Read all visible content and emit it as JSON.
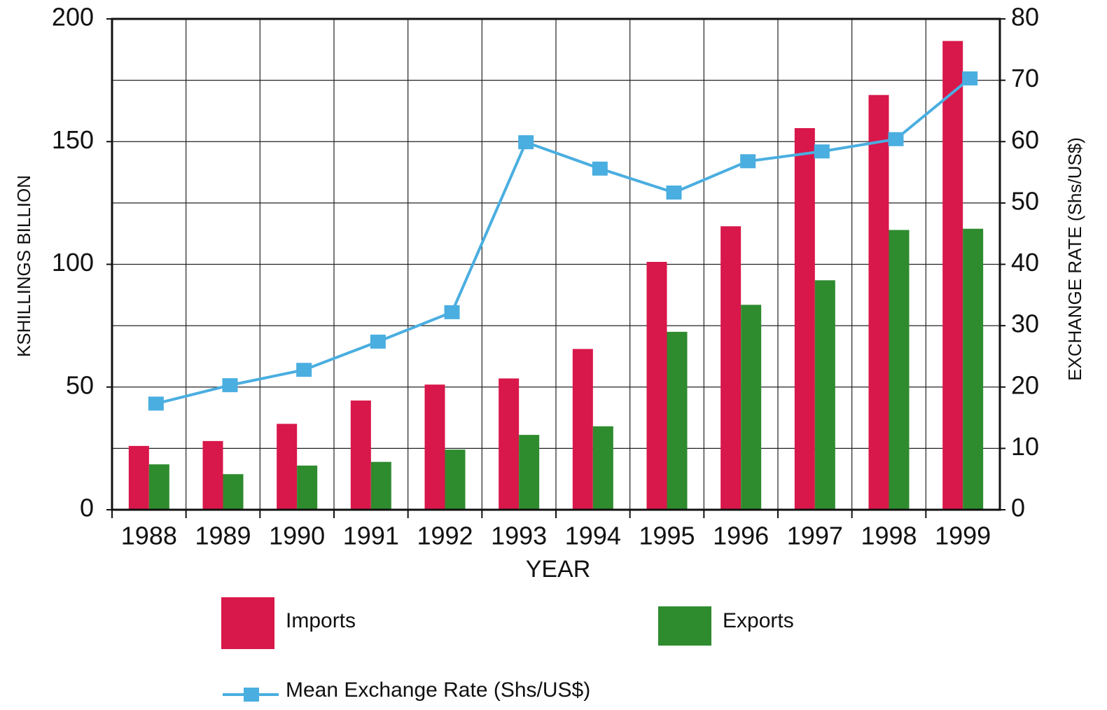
{
  "chart_data": {
    "type": "bar_line",
    "categories": [
      "1988",
      "1989",
      "1990",
      "1991",
      "1992",
      "1993",
      "1994",
      "1995",
      "1996",
      "1997",
      "1998",
      "1999"
    ],
    "series": [
      {
        "name": "Imports",
        "color": "#d8174a",
        "values": [
          26,
          28,
          35,
          44.5,
          51,
          53.5,
          65.5,
          101,
          115.5,
          155.5,
          169,
          191
        ]
      },
      {
        "name": "Exports",
        "color": "#2e8b2e",
        "values": [
          18.5,
          14.5,
          18,
          19.5,
          24.5,
          30.5,
          34,
          72.5,
          83.5,
          93.5,
          114,
          114.5
        ]
      },
      {
        "name": "Mean Exchange Rate (Shs/US$)",
        "color": "#4aaee0",
        "axis": "y2",
        "type": "line",
        "values": [
          17.3,
          20.3,
          22.8,
          27.4,
          32.2,
          59.9,
          55.6,
          51.7,
          56.8,
          58.4,
          60.4,
          70.3
        ]
      }
    ],
    "x_label": "YEAR",
    "y_label": "KSHILLINGS BILLION",
    "y2_label": "EXCHANGE RATE (Shs/US$)",
    "ylim": [
      0,
      200
    ],
    "yticks": [
      0,
      50,
      100,
      150,
      200
    ],
    "y2lim": [
      0,
      80
    ],
    "y2ticks": [
      0,
      10,
      20,
      30,
      40,
      50,
      60,
      70,
      80
    ],
    "grid": true,
    "legend": "bottom"
  }
}
